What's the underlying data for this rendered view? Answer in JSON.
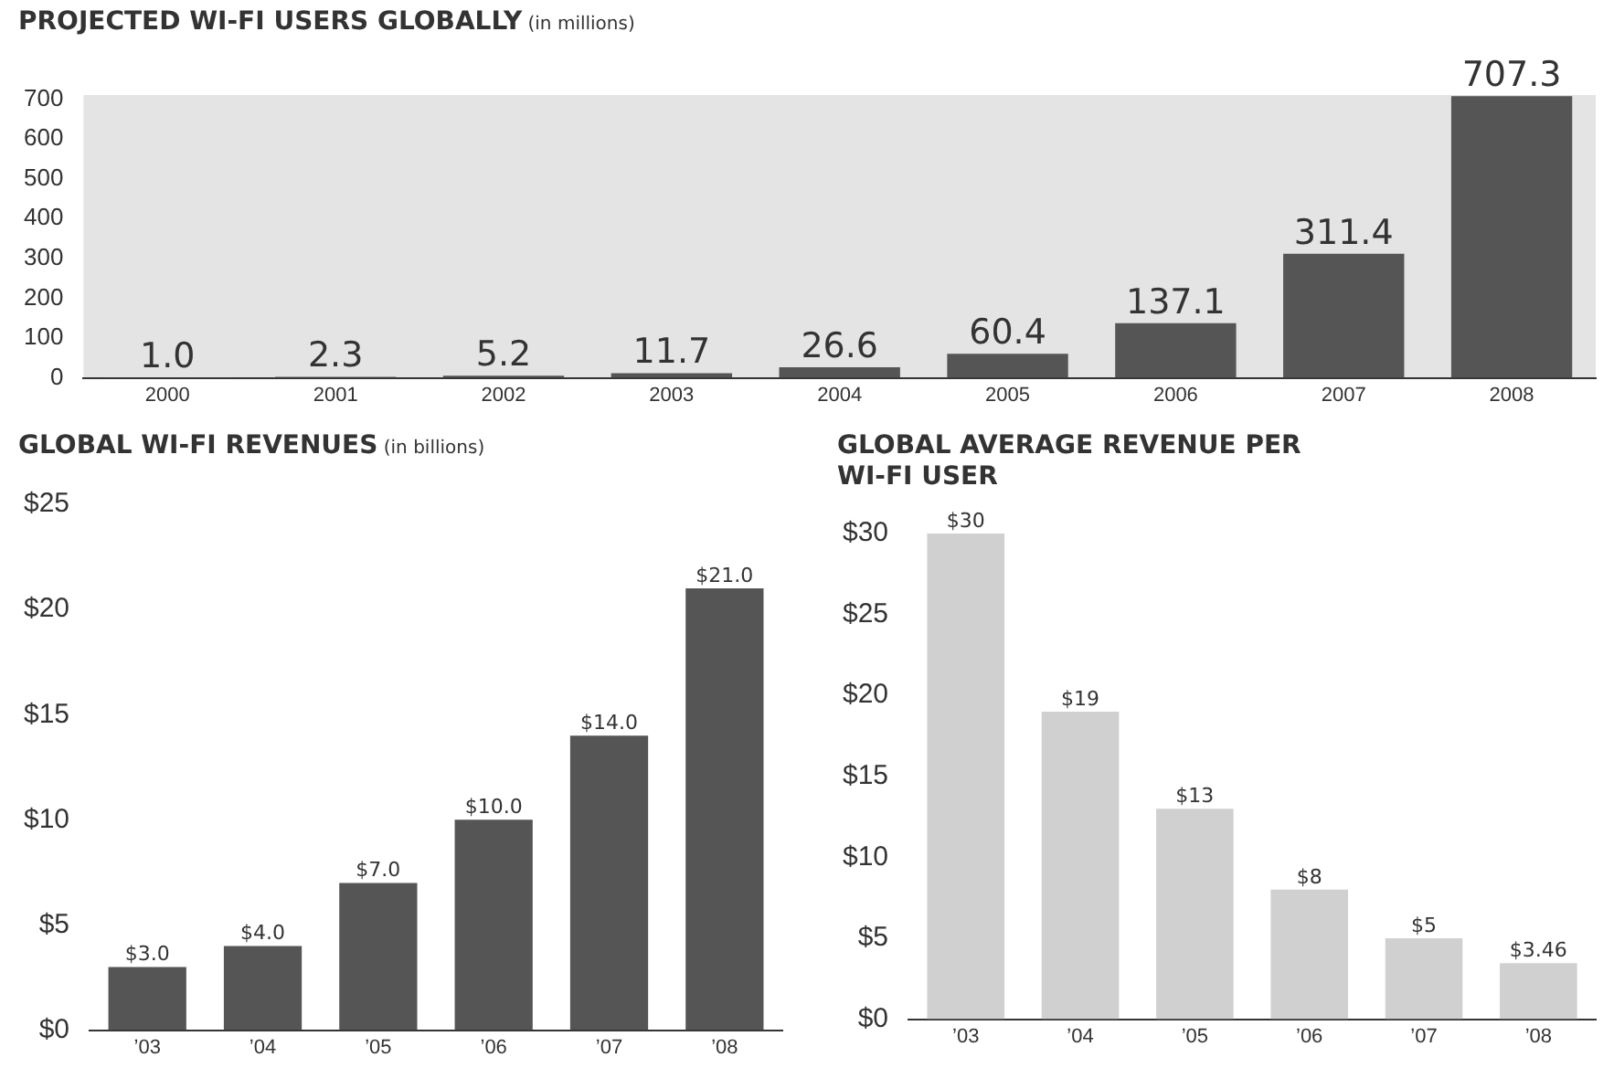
{
  "chart_data": [
    {
      "type": "bar",
      "title": "PROJECTED WI-FI USERS GLOBALLY",
      "subtitle": "(in millions)",
      "categories": [
        "2000",
        "2001",
        "2002",
        "2003",
        "2004",
        "2005",
        "2006",
        "2007",
        "2008"
      ],
      "values": [
        1.0,
        2.3,
        5.2,
        11.7,
        26.6,
        60.4,
        137.1,
        311.4,
        707.3
      ],
      "value_labels": [
        "1.0",
        "2.3",
        "5.2",
        "11.7",
        "26.6",
        "60.4",
        "137.1",
        "311.4",
        "707.3"
      ],
      "color": "#555555",
      "ylim": [
        0,
        710
      ],
      "yticks": [
        0,
        100,
        200,
        300,
        400,
        500,
        600,
        700
      ],
      "grid": false
    },
    {
      "type": "bar",
      "title": "GLOBAL WI-FI REVENUES",
      "subtitle": "(in billions)",
      "categories": [
        "’03",
        "’04",
        "’05",
        "’06",
        "’07",
        "’08"
      ],
      "values": [
        3.0,
        4.0,
        7.0,
        10.0,
        14.0,
        21.0
      ],
      "value_labels": [
        "$3.0",
        "$4.0",
        "$7.0",
        "$10.0",
        "$14.0",
        "$21.0"
      ],
      "color": "#555555",
      "ylim": [
        0,
        25
      ],
      "yticks": [
        {
          "value": 0,
          "label": "$0"
        },
        {
          "value": 5,
          "label": "$5"
        },
        {
          "value": 10,
          "label": "$10"
        },
        {
          "value": 15,
          "label": "$15"
        },
        {
          "value": 20,
          "label": "$20"
        },
        {
          "value": 25,
          "label": "$25"
        }
      ],
      "grid": false
    },
    {
      "type": "bar",
      "title": "GLOBAL AVERAGE REVENUE PER WI-FI USER",
      "categories": [
        "’03",
        "’04",
        "’05",
        "’06",
        "’07",
        "’08"
      ],
      "values": [
        30,
        19,
        13,
        8,
        5,
        3.46
      ],
      "value_labels": [
        "$30",
        "$19",
        "$13",
        "$8",
        "$5",
        "$3.46"
      ],
      "color": "#d0d0d0",
      "ylim": [
        0,
        30
      ],
      "yticks": [
        {
          "value": 0,
          "label": "$0"
        },
        {
          "value": 5,
          "label": "$5"
        },
        {
          "value": 10,
          "label": "$10"
        },
        {
          "value": 15,
          "label": "$15"
        },
        {
          "value": 20,
          "label": "$20"
        },
        {
          "value": 25,
          "label": "$25"
        },
        {
          "value": 30,
          "label": "$30"
        }
      ],
      "grid": false
    }
  ]
}
